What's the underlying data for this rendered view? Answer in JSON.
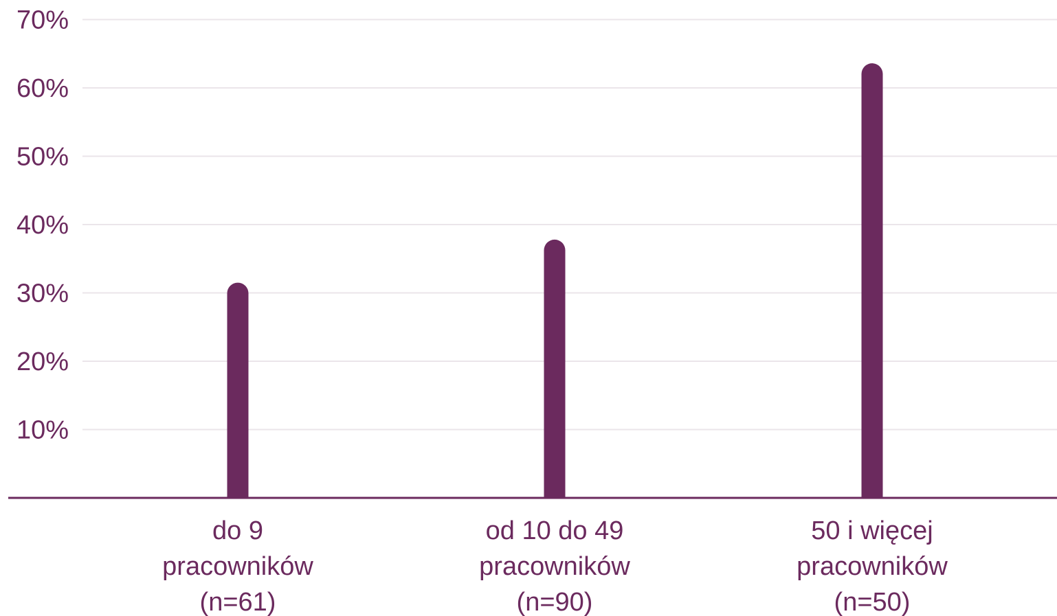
{
  "chart_data": {
    "type": "bar",
    "categories": [
      [
        "do 9",
        "pracowników",
        "(n=61)"
      ],
      [
        "od 10 do 49",
        "pracowników",
        "(n=90)"
      ],
      [
        "50 i więcej",
        "pracowników",
        "(n=50)"
      ]
    ],
    "values": [
      31.5,
      37.8,
      63.6
    ],
    "y_ticks": [
      "10%",
      "20%",
      "30%",
      "40%",
      "50%",
      "60%",
      "70%"
    ],
    "ylim": [
      0,
      70
    ],
    "grid": true,
    "colors": {
      "bar": "#6b2a5e",
      "axis": "#6b2a5e",
      "text": "#6b2a5e",
      "grid": "#ebe5ea"
    }
  }
}
